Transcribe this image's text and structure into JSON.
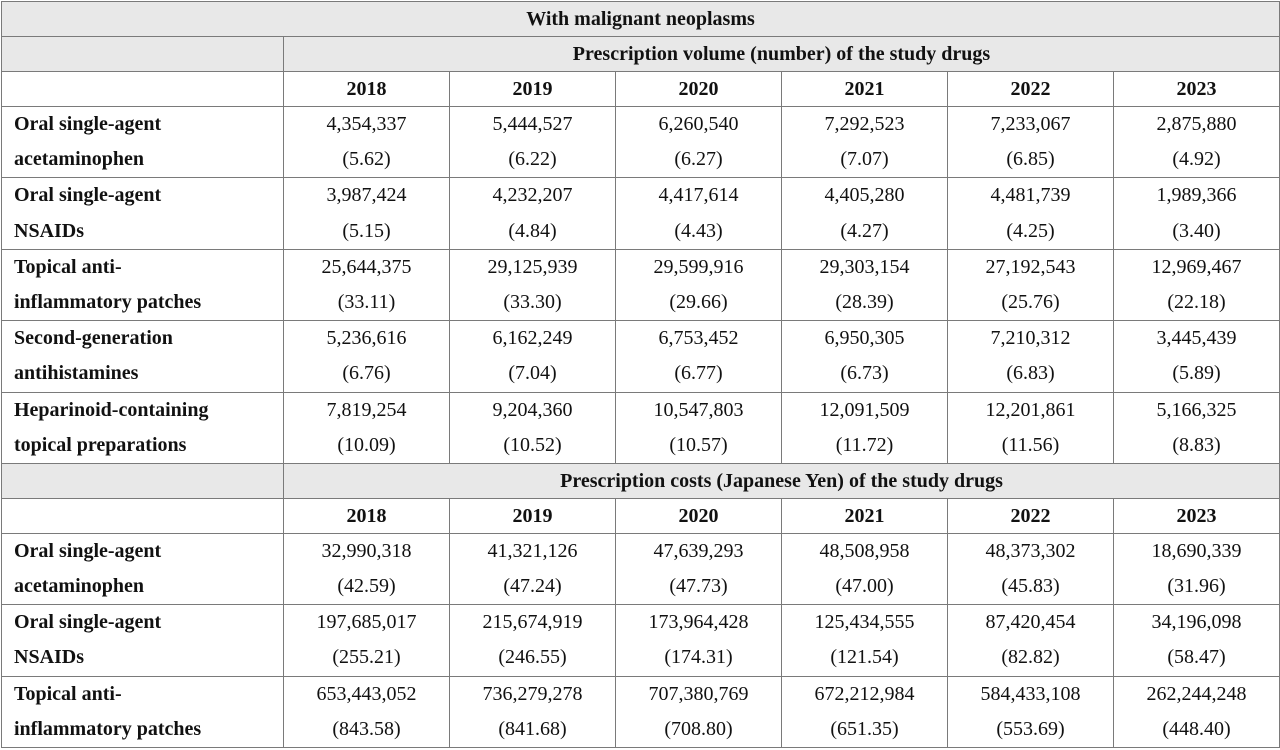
{
  "table_title": "With malignant neoplasms",
  "years": [
    "2018",
    "2019",
    "2020",
    "2021",
    "2022",
    "2023"
  ],
  "sections": [
    {
      "heading": "Prescription volume (number) of the study drugs",
      "rows": [
        {
          "label_lines": [
            "Oral single-agent",
            "acetaminophen"
          ],
          "cells": [
            [
              "4,354,337",
              "(5.62)"
            ],
            [
              "5,444,527",
              "(6.22)"
            ],
            [
              "6,260,540",
              "(6.27)"
            ],
            [
              "7,292,523",
              "(7.07)"
            ],
            [
              "7,233,067",
              "(6.85)"
            ],
            [
              "2,875,880",
              "(4.92)"
            ]
          ]
        },
        {
          "label_lines": [
            "Oral single-agent",
            "NSAIDs"
          ],
          "cells": [
            [
              "3,987,424",
              "(5.15)"
            ],
            [
              "4,232,207",
              "(4.84)"
            ],
            [
              "4,417,614",
              "(4.43)"
            ],
            [
              "4,405,280",
              "(4.27)"
            ],
            [
              "4,481,739",
              "(4.25)"
            ],
            [
              "1,989,366",
              "(3.40)"
            ]
          ]
        },
        {
          "label_lines": [
            "Topical anti-",
            "inflammatory patches"
          ],
          "cells": [
            [
              "25,644,375",
              "(33.11)"
            ],
            [
              "29,125,939",
              "(33.30)"
            ],
            [
              "29,599,916",
              "(29.66)"
            ],
            [
              "29,303,154",
              "(28.39)"
            ],
            [
              "27,192,543",
              "(25.76)"
            ],
            [
              "12,969,467",
              "(22.18)"
            ]
          ]
        },
        {
          "label_lines": [
            "Second-generation",
            "antihistamines"
          ],
          "cells": [
            [
              "5,236,616",
              "(6.76)"
            ],
            [
              "6,162,249",
              "(7.04)"
            ],
            [
              "6,753,452",
              "(6.77)"
            ],
            [
              "6,950,305",
              "(6.73)"
            ],
            [
              "7,210,312",
              "(6.83)"
            ],
            [
              "3,445,439",
              "(5.89)"
            ]
          ]
        },
        {
          "label_lines": [
            "Heparinoid-containing",
            "topical preparations"
          ],
          "cells": [
            [
              "7,819,254",
              "(10.09)"
            ],
            [
              "9,204,360",
              "(10.52)"
            ],
            [
              "10,547,803",
              "(10.57)"
            ],
            [
              "12,091,509",
              "(11.72)"
            ],
            [
              "12,201,861",
              "(11.56)"
            ],
            [
              "5,166,325",
              "(8.83)"
            ]
          ]
        }
      ]
    },
    {
      "heading": "Prescription costs (Japanese Yen) of the study drugs",
      "rows": [
        {
          "label_lines": [
            "Oral single-agent",
            "acetaminophen"
          ],
          "cells": [
            [
              "32,990,318",
              "(42.59)"
            ],
            [
              "41,321,126",
              "(47.24)"
            ],
            [
              "47,639,293",
              "(47.73)"
            ],
            [
              "48,508,958",
              "(47.00)"
            ],
            [
              "48,373,302",
              "(45.83)"
            ],
            [
              "18,690,339",
              "(31.96)"
            ]
          ]
        },
        {
          "label_lines": [
            "Oral single-agent",
            "NSAIDs"
          ],
          "cells": [
            [
              "197,685,017",
              "(255.21)"
            ],
            [
              "215,674,919",
              "(246.55)"
            ],
            [
              "173,964,428",
              "(174.31)"
            ],
            [
              "125,434,555",
              "(121.54)"
            ],
            [
              "87,420,454",
              "(82.82)"
            ],
            [
              "34,196,098",
              "(58.47)"
            ]
          ]
        },
        {
          "label_lines": [
            "Topical anti-",
            "inflammatory patches"
          ],
          "cells": [
            [
              "653,443,052",
              "(843.58)"
            ],
            [
              "736,279,278",
              "(841.68)"
            ],
            [
              "707,380,769",
              "(708.80)"
            ],
            [
              "672,212,984",
              "(651.35)"
            ],
            [
              "584,433,108",
              "(553.69)"
            ],
            [
              "262,244,248",
              "(448.40)"
            ]
          ]
        }
      ]
    }
  ]
}
